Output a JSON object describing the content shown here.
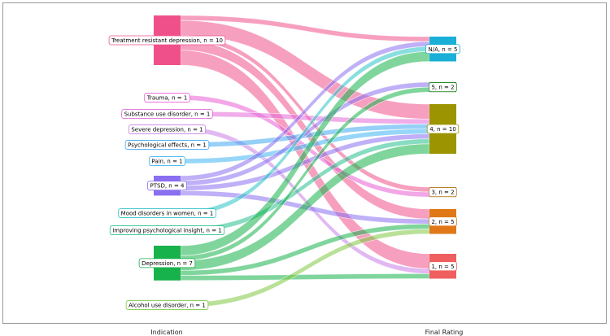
{
  "chart_data": {
    "type": "sankey",
    "axis_labels": [
      "Indication",
      "Final Rating"
    ],
    "left_nodes": [
      {
        "name": "Treatment resistant depression",
        "n": 10,
        "color": "#f0508a",
        "label": "Treatment resistant depression,  n = 10"
      },
      {
        "name": "Trauma",
        "n": 1,
        "color": "#ea5fd4",
        "label": "Trauma,  n = 1"
      },
      {
        "name": "Substance use disorder",
        "n": 1,
        "color": "#e46ad8",
        "label": "Substance use disorder,  n = 1"
      },
      {
        "name": "Severe depression",
        "n": 1,
        "color": "#c97ee6",
        "label": "Severe depression,  n = 1"
      },
      {
        "name": "Psychological effects",
        "n": 1,
        "color": "#3fa8f0",
        "label": "Psychological effects,  n = 1"
      },
      {
        "name": "Pain",
        "n": 1,
        "color": "#3fb4f2",
        "label": "Pain,  n = 1"
      },
      {
        "name": "PTSD",
        "n": 4,
        "color": "#8a6ff0",
        "label": "PTSD,  n = 4"
      },
      {
        "name": "Mood disorders in women",
        "n": 1,
        "color": "#2bc3c7",
        "label": "Mood disorders in women,  n = 1"
      },
      {
        "name": "Improving psychological insight",
        "n": 1,
        "color": "#25c08e",
        "label": "Improving psychological insight,  n = 1"
      },
      {
        "name": "Depression",
        "n": 7,
        "color": "#17b24b",
        "label": "Depression,  n = 7"
      },
      {
        "name": "Alcohol use disorder",
        "n": 1,
        "color": "#7fc843",
        "label": "Alcohol use disorder,  n = 1"
      }
    ],
    "right_nodes": [
      {
        "name": "N/A",
        "n": 5,
        "color": "#1aafd6",
        "label": "N/A,  n = 5"
      },
      {
        "name": "5",
        "n": 2,
        "color": "#2a8a2a",
        "label": "5,  n = 2"
      },
      {
        "name": "4",
        "n": 10,
        "color": "#9c9400",
        "label": "4,  n = 10"
      },
      {
        "name": "3",
        "n": 2,
        "color": "#b8812a",
        "label": "3,  n = 2"
      },
      {
        "name": "2",
        "n": 5,
        "color": "#e07817",
        "label": "2,  n = 5"
      },
      {
        "name": "1",
        "n": 5,
        "color": "#ef5f5f",
        "label": "1,  n = 5"
      }
    ],
    "flows": [
      {
        "source": "Treatment resistant depression",
        "target": "N/A",
        "value": 1
      },
      {
        "source": "Treatment resistant depression",
        "target": "4",
        "value": 3
      },
      {
        "source": "Treatment resistant depression",
        "target": "3",
        "value": 1
      },
      {
        "source": "Treatment resistant depression",
        "target": "2",
        "value": 2
      },
      {
        "source": "Treatment resistant depression",
        "target": "1",
        "value": 3
      },
      {
        "source": "Trauma",
        "target": "3",
        "value": 1
      },
      {
        "source": "Substance use disorder",
        "target": "4",
        "value": 1
      },
      {
        "source": "Severe depression",
        "target": "1",
        "value": 1
      },
      {
        "source": "Psychological effects",
        "target": "4",
        "value": 1
      },
      {
        "source": "Pain",
        "target": "4",
        "value": 1
      },
      {
        "source": "PTSD",
        "target": "N/A",
        "value": 1
      },
      {
        "source": "PTSD",
        "target": "5",
        "value": 1
      },
      {
        "source": "PTSD",
        "target": "4",
        "value": 1
      },
      {
        "source": "PTSD",
        "target": "2",
        "value": 1
      },
      {
        "source": "Mood disorders in women",
        "target": "N/A",
        "value": 1
      },
      {
        "source": "Improving psychological insight",
        "target": "4",
        "value": 1
      },
      {
        "source": "Depression",
        "target": "N/A",
        "value": 2
      },
      {
        "source": "Depression",
        "target": "5",
        "value": 1
      },
      {
        "source": "Depression",
        "target": "4",
        "value": 2
      },
      {
        "source": "Depression",
        "target": "1",
        "value": 1
      },
      {
        "source": "Depression",
        "target": "2",
        "value": 1
      },
      {
        "source": "Alcohol use disorder",
        "target": "2",
        "value": 1
      }
    ]
  }
}
